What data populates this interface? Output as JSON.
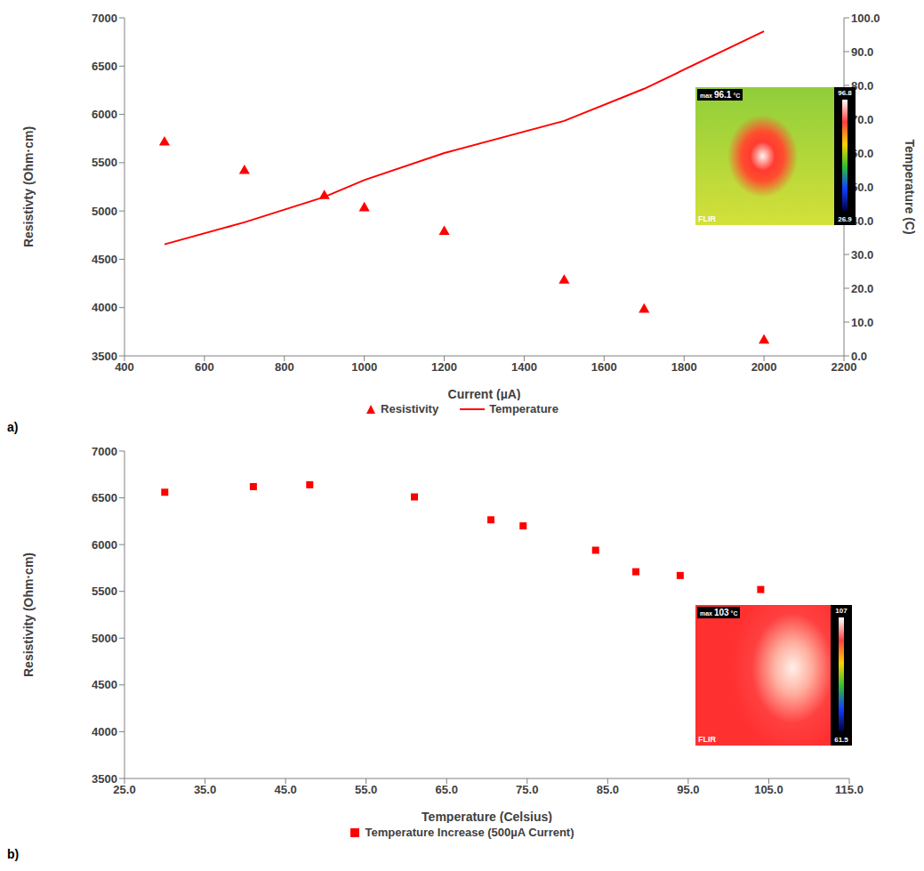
{
  "chart_data": [
    {
      "type": "scatter",
      "panel_label": "a)",
      "x_label": "Current (µA)",
      "y_label": "Resistivty (Ohm·cm)",
      "y2_label": "Temperature (C)",
      "x": [
        500,
        700,
        900,
        1000,
        1200,
        1500,
        1700,
        2000
      ],
      "series": [
        {
          "name": "Resistivity",
          "type": "scatter",
          "color": "#ff0000",
          "marker": "triangle",
          "values": [
            5710,
            5415,
            5155,
            5030,
            4785,
            4280,
            3980,
            3660
          ]
        },
        {
          "name": "Temperature",
          "type": "line",
          "color": "#ff0000",
          "marker": "none",
          "line_style": "solid",
          "axis": "y2",
          "values": [
            33,
            39.5,
            47,
            52,
            60,
            69.5,
            79,
            96
          ]
        }
      ],
      "xlim": [
        400,
        2200
      ],
      "xticks": [
        400,
        600,
        800,
        1000,
        1200,
        1400,
        1600,
        1800,
        2000,
        2200
      ],
      "ylim": [
        3500,
        7000
      ],
      "yticks": [
        3500,
        4000,
        4500,
        5000,
        5500,
        6000,
        6500,
        7000
      ],
      "y2lim": [
        0,
        100
      ],
      "y2ticks": [
        {
          "value": 0,
          "label": "0.0"
        },
        {
          "value": 10,
          "label": "10.0"
        },
        {
          "value": 20,
          "label": "20.0"
        },
        {
          "value": 30,
          "label": "30.0"
        },
        {
          "value": 40,
          "label": "40.0"
        },
        {
          "value": 50,
          "label": "50.0"
        },
        {
          "value": 60,
          "label": "60.0"
        },
        {
          "value": 70,
          "label": "70.0"
        },
        {
          "value": 80,
          "label": "80.0"
        },
        {
          "value": 90,
          "label": "90.0"
        },
        {
          "value": 100,
          "label": "100.0"
        }
      ],
      "grid": false,
      "legend": "bottom",
      "inset": {
        "max_label": "max",
        "max_value": 96.1,
        "unit": "°C",
        "scale_max": 96.8,
        "scale_min": 26.9,
        "logo": "FLIR"
      }
    },
    {
      "type": "scatter",
      "panel_label": "b)",
      "x_label": "Temperature (Celsius)",
      "y_label": "Resistivity (Ohm·cm)",
      "x": [
        30,
        41,
        48,
        61,
        70.5,
        74.5,
        83.5,
        88.5,
        94,
        104
      ],
      "series": [
        {
          "name": "Temperature Increase (500µA Current)",
          "type": "scatter",
          "color": "#ff0000",
          "marker": "square",
          "values": [
            6560,
            6620,
            6640,
            6510,
            6265,
            6200,
            5940,
            5710,
            5670,
            5520
          ]
        }
      ],
      "xlim": [
        25,
        115
      ],
      "xticks": [
        {
          "value": 25,
          "label": "25.0"
        },
        {
          "value": 35,
          "label": "35.0"
        },
        {
          "value": 45,
          "label": "45.0"
        },
        {
          "value": 55,
          "label": "55.0"
        },
        {
          "value": 65,
          "label": "65.0"
        },
        {
          "value": 75,
          "label": "75.0"
        },
        {
          "value": 85,
          "label": "85.0"
        },
        {
          "value": 95,
          "label": "95.0"
        },
        {
          "value": 105,
          "label": "105.0"
        },
        {
          "value": 115,
          "label": "115.0"
        }
      ],
      "ylim": [
        3500,
        7000
      ],
      "yticks": [
        3500,
        4000,
        4500,
        5000,
        5500,
        6000,
        6500,
        7000
      ],
      "grid": false,
      "legend": "bottom",
      "inset": {
        "max_label": "max",
        "max_value": 103,
        "unit": "°C",
        "scale_max": 107,
        "scale_min": 61.5,
        "logo": "FLIR"
      }
    }
  ]
}
